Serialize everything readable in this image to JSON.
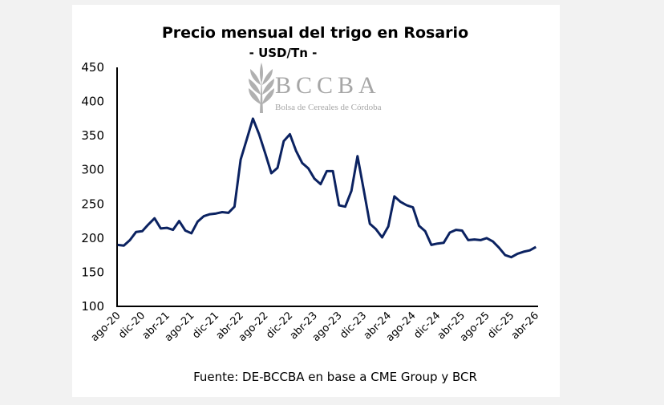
{
  "chart_data": {
    "type": "line",
    "title": "Precio mensual del trigo en Rosario",
    "subtitle": "- USD/Tn -",
    "source": "Fuente: DE-BCCBA en base a CME Group y BCR",
    "xlabel": "",
    "ylabel": "",
    "ylim": [
      100,
      450
    ],
    "yticks": [
      100,
      150,
      200,
      250,
      300,
      350,
      400,
      450
    ],
    "xtick_labels": [
      "ago-20",
      "dic-20",
      "abr-21",
      "ago-21",
      "dic-21",
      "abr-22",
      "ago-22",
      "dic-22",
      "abr-23",
      "ago-23",
      "dic-23",
      "abr-24",
      "ago-24",
      "dic-24",
      "abr-25",
      "ago-25",
      "dic-25",
      "abr-26"
    ],
    "x_start": "ago-20",
    "x_end": "abr-26",
    "grid": false,
    "legend": "none",
    "line_color": "#0b2261",
    "series": [
      {
        "values": [
          190,
          189,
          197,
          209,
          210,
          220,
          229,
          214,
          215,
          212,
          225,
          211,
          207,
          224,
          232,
          235,
          236,
          238,
          237,
          246,
          315,
          345,
          375,
          352,
          324,
          295,
          303,
          342,
          352,
          328,
          310,
          302,
          287,
          279,
          298,
          298,
          248,
          246,
          269,
          320,
          271,
          221,
          213,
          201,
          217,
          261,
          253,
          248,
          245,
          218,
          210,
          190,
          192,
          193,
          208,
          212,
          211,
          197,
          198,
          197,
          200,
          195,
          186,
          175,
          172,
          177,
          180,
          182,
          187
        ]
      }
    ]
  },
  "watermark": {
    "logo_text": "BCCBA",
    "logo_subtext": "Bolsa de Cereales de Córdoba",
    "color": "#a6a6a6"
  }
}
